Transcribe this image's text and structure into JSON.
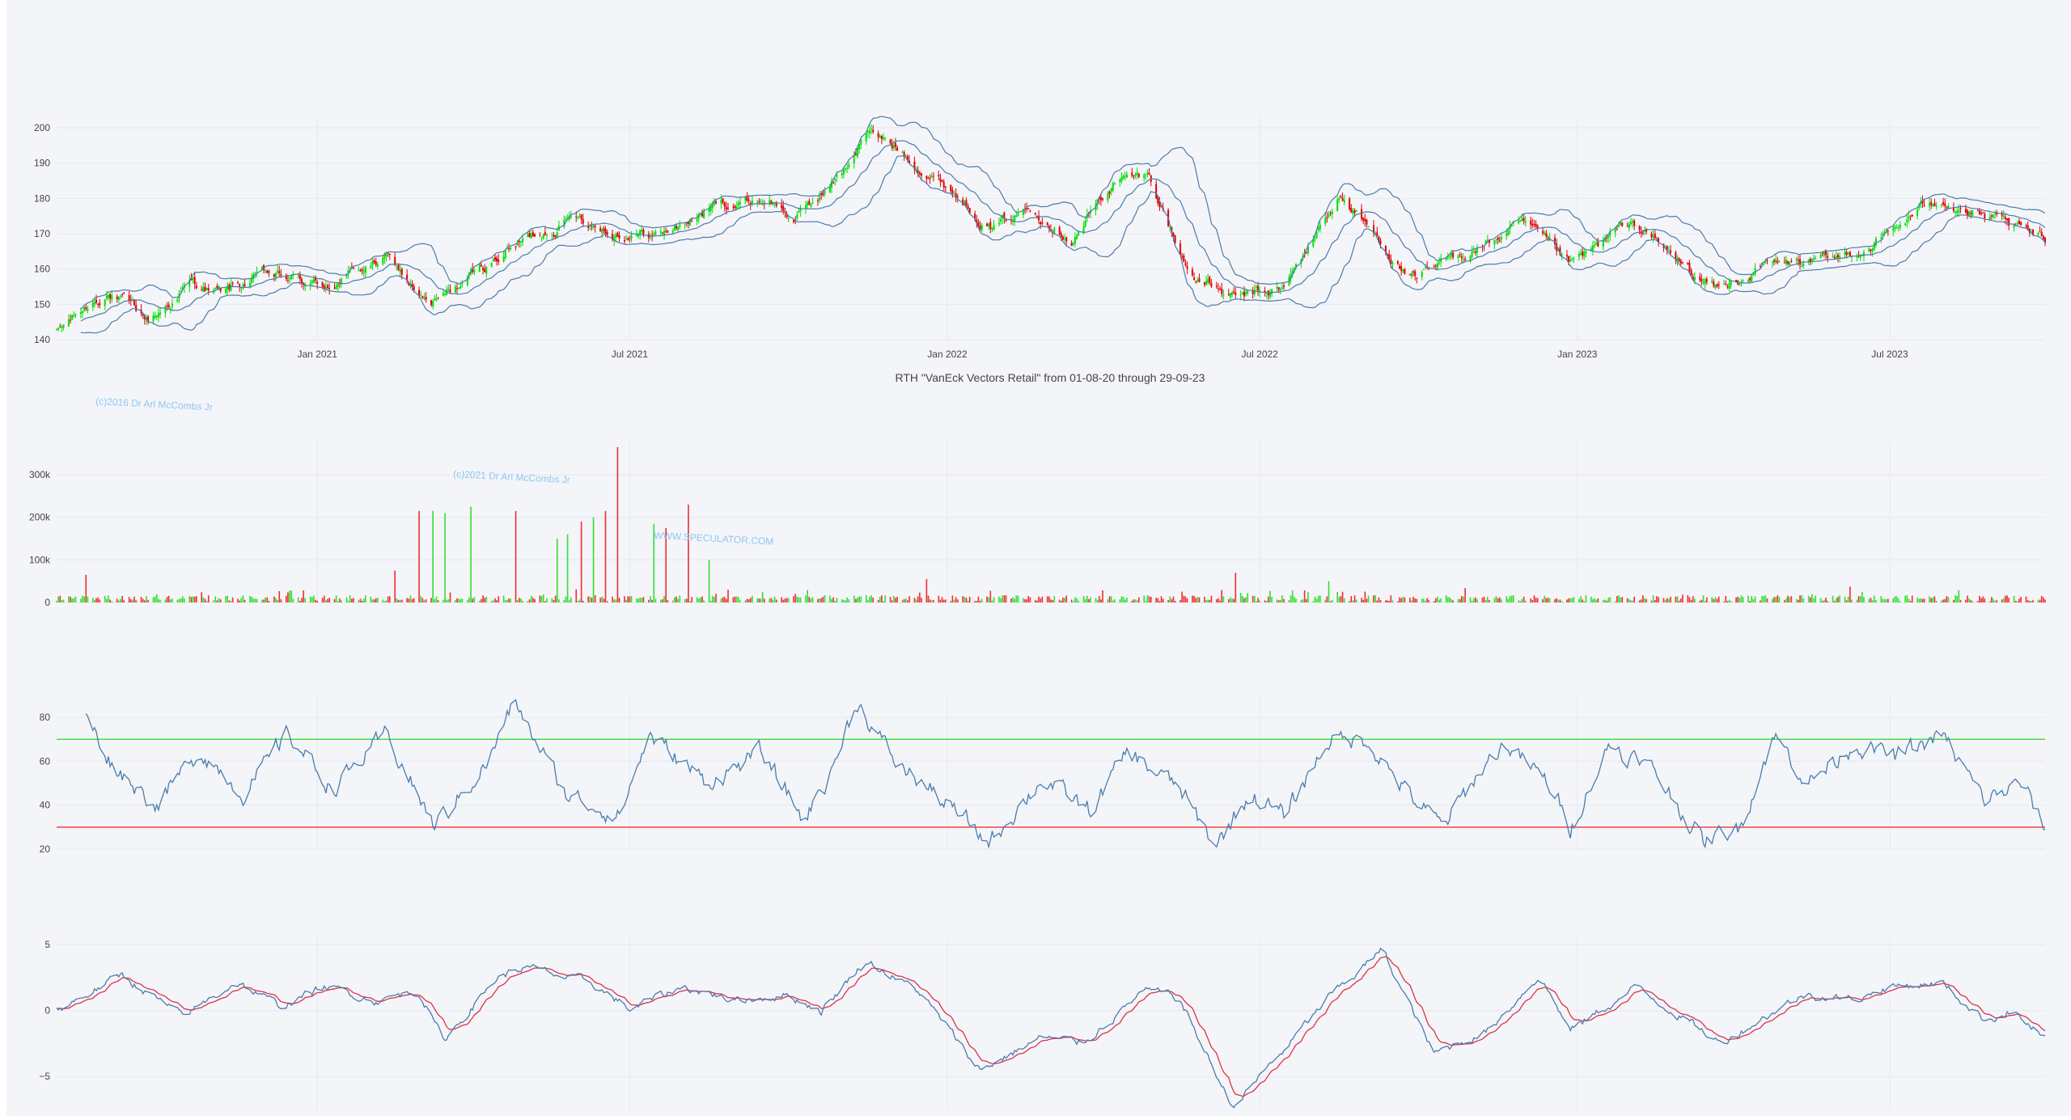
{
  "colors": {
    "background": "#f4f5f9",
    "grid": "#e6e8ee",
    "price_line": "#4a7cab",
    "candle_up": "#00e000",
    "candle_down": "#e00000",
    "volume_up": "#33e033",
    "volume_down": "#ee3333",
    "rsi_line": "#4a7cab",
    "rsi_upper": "#44dd44",
    "rsi_lower": "#ee4444",
    "macd_line": "#4a7cab",
    "signal_line": "#dd3344",
    "watermark": "#8cc8f0",
    "tick_text": "#444444",
    "title_text": "#444444"
  },
  "title": "RTH \"VanEck Vectors Retail\" from 01-08-20 through 29-09-23",
  "watermarks": [
    "(c)2016 Dr Arl McCombs Jr",
    "(c)2021 Dr Arl McCombs Jr",
    "WWW.SPECULATOR.COM"
  ],
  "chart_data": [
    {
      "type": "candlestick",
      "x_ticks": [
        "Jan 2021",
        "Jul 2021",
        "Jan 2022",
        "Jul 2022",
        "Jan 2023",
        "Jul 2023"
      ],
      "x_tick_dates": [
        "2021-01-01",
        "2021-07-01",
        "2022-01-01",
        "2022-07-01",
        "2023-01-01",
        "2023-07-01"
      ],
      "x_range": [
        "2020-08-03",
        "2023-09-29"
      ],
      "ylim": [
        140,
        203
      ],
      "y_ticks": [
        140,
        150,
        160,
        170,
        180,
        190,
        200
      ],
      "overlays": [
        "bollinger-upper",
        "bollinger-middle",
        "bollinger-lower"
      ],
      "close_anchors": [
        [
          "2020-08-03",
          142
        ],
        [
          "2020-09-01",
          154
        ],
        [
          "2020-09-25",
          145
        ],
        [
          "2020-10-20",
          156
        ],
        [
          "2020-11-06",
          153
        ],
        [
          "2020-12-01",
          158
        ],
        [
          "2021-01-04",
          155
        ],
        [
          "2021-02-10",
          163
        ],
        [
          "2021-03-08",
          149
        ],
        [
          "2021-04-20",
          165
        ],
        [
          "2021-06-01",
          176
        ],
        [
          "2021-06-20",
          171
        ],
        [
          "2021-07-20",
          170
        ],
        [
          "2021-08-20",
          178
        ],
        [
          "2021-09-20",
          180
        ],
        [
          "2021-10-05",
          174
        ],
        [
          "2021-11-01",
          187
        ],
        [
          "2021-11-15",
          199
        ],
        [
          "2021-12-10",
          192
        ],
        [
          "2022-01-03",
          183
        ],
        [
          "2022-01-28",
          172
        ],
        [
          "2022-02-20",
          178
        ],
        [
          "2022-03-15",
          170
        ],
        [
          "2022-04-08",
          185
        ],
        [
          "2022-04-28",
          186
        ],
        [
          "2022-05-20",
          160
        ],
        [
          "2022-06-16",
          151
        ],
        [
          "2022-07-15",
          154
        ],
        [
          "2022-08-16",
          181
        ],
        [
          "2022-09-30",
          156
        ],
        [
          "2022-10-25",
          164
        ],
        [
          "2022-11-30",
          172
        ],
        [
          "2022-12-28",
          160
        ],
        [
          "2023-02-02",
          173
        ],
        [
          "2023-03-10",
          158
        ],
        [
          "2023-03-25",
          154
        ],
        [
          "2023-04-20",
          161
        ],
        [
          "2023-05-31",
          162
        ],
        [
          "2023-06-30",
          170
        ],
        [
          "2023-07-31",
          181
        ],
        [
          "2023-08-25",
          174
        ],
        [
          "2023-09-29",
          167
        ]
      ]
    },
    {
      "type": "bar",
      "name": "volume",
      "ylim": [
        0,
        380000
      ],
      "y_ticks": [
        0,
        100000,
        200000,
        300000
      ],
      "y_tick_labels": [
        "0",
        "100k",
        "200k",
        "300k"
      ],
      "spikes": [
        [
          "2021-03-01",
          215000
        ],
        [
          "2021-03-09",
          215000
        ],
        [
          "2021-03-16",
          210000
        ],
        [
          "2021-03-31",
          225000
        ],
        [
          "2021-04-26",
          215000
        ],
        [
          "2021-05-20",
          150000
        ],
        [
          "2021-05-26",
          160000
        ],
        [
          "2021-06-03",
          190000
        ],
        [
          "2021-06-10",
          200000
        ],
        [
          "2021-06-17",
          215000
        ],
        [
          "2021-06-24",
          365000
        ],
        [
          "2021-07-15",
          185000
        ],
        [
          "2021-07-22",
          175000
        ],
        [
          "2021-08-04",
          230000
        ],
        [
          "2021-08-16",
          100000
        ],
        [
          "2021-02-15",
          75000
        ],
        [
          "2020-08-20",
          65000
        ],
        [
          "2022-06-17",
          70000
        ],
        [
          "2022-08-10",
          50000
        ],
        [
          "2021-12-20",
          55000
        ]
      ]
    },
    {
      "type": "line",
      "name": "rsi",
      "ylim": [
        20,
        90
      ],
      "y_ticks": [
        20,
        40,
        60,
        80
      ],
      "reference_lines": [
        70,
        30
      ],
      "anchors": [
        [
          "2020-08-20",
          80
        ],
        [
          "2020-09-05",
          58
        ],
        [
          "2020-09-30",
          40
        ],
        [
          "2020-10-25",
          65
        ],
        [
          "2020-11-20",
          45
        ],
        [
          "2020-12-15",
          73
        ],
        [
          "2021-01-10",
          47
        ],
        [
          "2021-02-10",
          72
        ],
        [
          "2021-03-10",
          30
        ],
        [
          "2021-04-10",
          60
        ],
        [
          "2021-04-25",
          87
        ],
        [
          "2021-05-25",
          45
        ],
        [
          "2021-06-25",
          35
        ],
        [
          "2021-07-12",
          72
        ],
        [
          "2021-08-15",
          50
        ],
        [
          "2021-09-15",
          64
        ],
        [
          "2021-10-10",
          33
        ],
        [
          "2021-10-25",
          55
        ],
        [
          "2021-11-10",
          87
        ],
        [
          "2021-12-01",
          60
        ],
        [
          "2021-12-25",
          45
        ],
        [
          "2022-01-25",
          23
        ],
        [
          "2022-02-25",
          52
        ],
        [
          "2022-03-25",
          37
        ],
        [
          "2022-04-15",
          64
        ],
        [
          "2022-05-15",
          48
        ],
        [
          "2022-06-05",
          21
        ],
        [
          "2022-06-25",
          45
        ],
        [
          "2022-07-15",
          35
        ],
        [
          "2022-08-10",
          70
        ],
        [
          "2022-09-01",
          70
        ],
        [
          "2022-09-25",
          45
        ],
        [
          "2022-10-15",
          30
        ],
        [
          "2022-11-05",
          55
        ],
        [
          "2022-11-20",
          68
        ],
        [
          "2022-12-15",
          50
        ],
        [
          "2022-12-28",
          30
        ],
        [
          "2023-01-20",
          68
        ],
        [
          "2023-02-15",
          55
        ],
        [
          "2023-03-15",
          23
        ],
        [
          "2023-04-05",
          30
        ],
        [
          "2023-04-25",
          72
        ],
        [
          "2023-05-15",
          50
        ],
        [
          "2023-06-10",
          68
        ],
        [
          "2023-07-05",
          62
        ],
        [
          "2023-07-31",
          72
        ],
        [
          "2023-08-25",
          42
        ],
        [
          "2023-09-15",
          50
        ],
        [
          "2023-09-29",
          30
        ]
      ]
    },
    {
      "type": "line",
      "name": "macd",
      "ylim": [
        -7.5,
        5.5
      ],
      "y_ticks": [
        -5,
        0,
        5
      ],
      "y_tick_labels": [
        "−5",
        "0",
        "5"
      ],
      "series_colors": [
        "#4a7cab",
        "#dd3344"
      ],
      "anchors": [
        [
          "2020-08-03",
          0
        ],
        [
          "2020-09-10",
          2.7
        ],
        [
          "2020-10-15",
          -0.5
        ],
        [
          "2020-11-15",
          2.2
        ],
        [
          "2020-12-10",
          0.3
        ],
        [
          "2021-01-05",
          1.8
        ],
        [
          "2021-02-05",
          0.8
        ],
        [
          "2021-03-01",
          1.5
        ],
        [
          "2021-03-15",
          -2.3
        ],
        [
          "2021-04-15",
          2.5
        ],
        [
          "2021-05-01",
          3.3
        ],
        [
          "2021-06-10",
          2.0
        ],
        [
          "2021-07-01",
          0.1
        ],
        [
          "2021-08-01",
          1.8
        ],
        [
          "2021-09-01",
          0.8
        ],
        [
          "2021-10-01",
          1.2
        ],
        [
          "2021-10-20",
          0
        ],
        [
          "2021-11-15",
          3.8
        ],
        [
          "2021-12-15",
          1.5
        ],
        [
          "2022-01-20",
          -4.5
        ],
        [
          "2022-02-25",
          -2.0
        ],
        [
          "2022-03-20",
          -2.5
        ],
        [
          "2022-04-25",
          1.5
        ],
        [
          "2022-05-15",
          1.0
        ],
        [
          "2022-06-15",
          -7.3
        ],
        [
          "2022-07-15",
          -3.0
        ],
        [
          "2022-08-10",
          1.0
        ],
        [
          "2022-09-10",
          4.6
        ],
        [
          "2022-10-10",
          -3.3
        ],
        [
          "2022-11-10",
          -1.5
        ],
        [
          "2022-12-10",
          2.7
        ],
        [
          "2022-12-28",
          -1.5
        ],
        [
          "2023-02-05",
          1.8
        ],
        [
          "2023-03-25",
          -2.5
        ],
        [
          "2023-04-25",
          0
        ],
        [
          "2023-05-15",
          1.3
        ],
        [
          "2023-06-10",
          0.8
        ],
        [
          "2023-06-30",
          1.8
        ],
        [
          "2023-07-31",
          2.1
        ],
        [
          "2023-08-25",
          -0.7
        ],
        [
          "2023-09-10",
          0
        ],
        [
          "2023-09-29",
          -2.2
        ]
      ]
    }
  ]
}
